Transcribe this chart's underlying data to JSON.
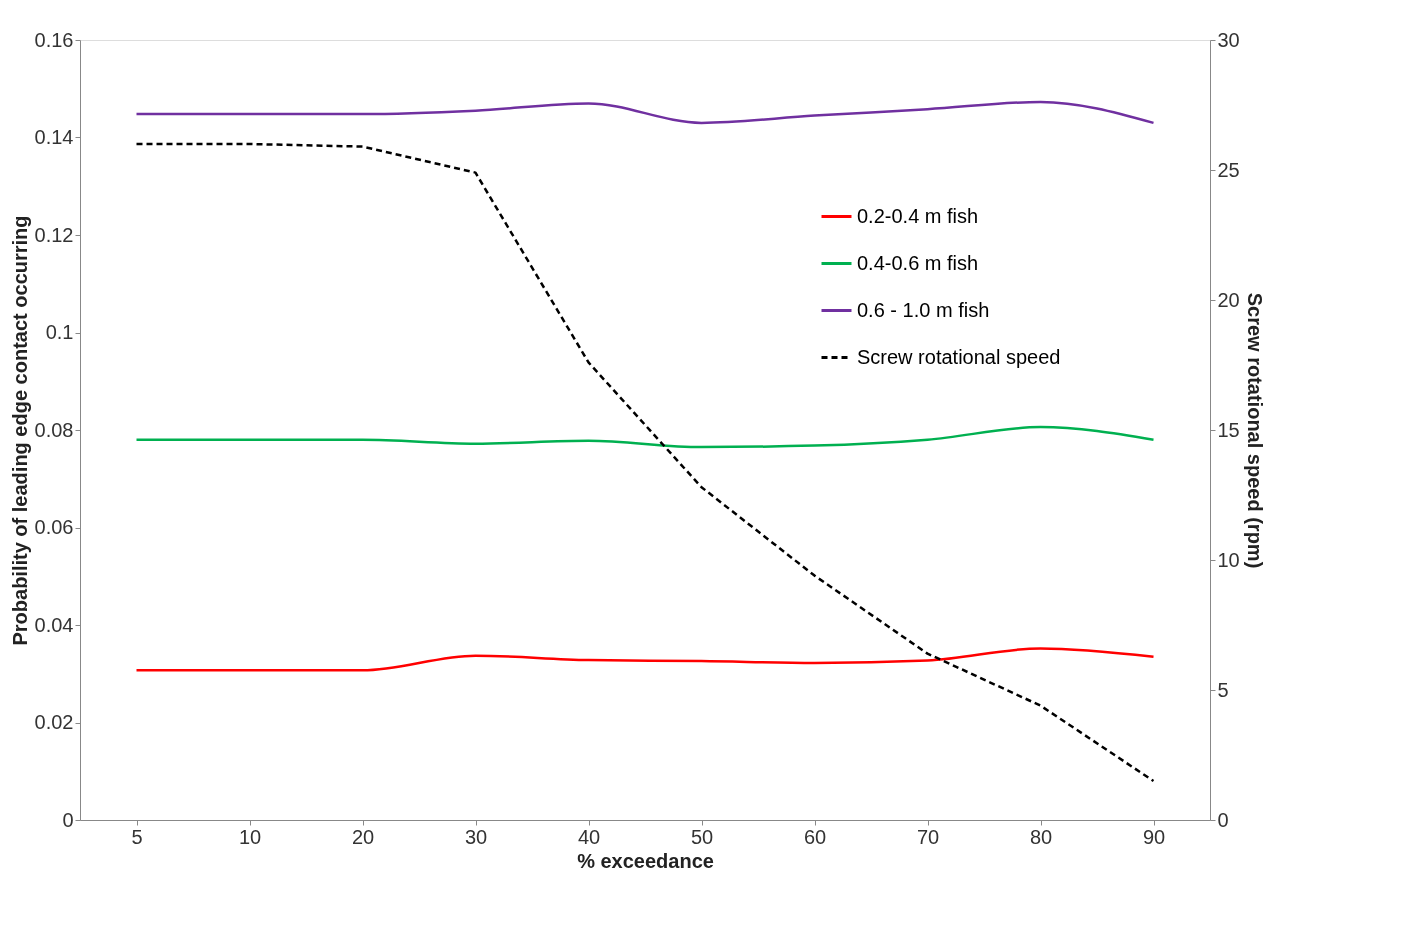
{
  "chart_data": {
    "type": "line",
    "xlabel": "% exceedance",
    "ylabel": "Probability of leading edge contact occurring",
    "y2label": "Screw rotational speed (rpm)",
    "categories": [
      "5",
      "10",
      "20",
      "30",
      "40",
      "50",
      "60",
      "70",
      "80",
      "90"
    ],
    "series": [
      {
        "name": "0.2-0.4 m fish",
        "color": "#ff0000",
        "line_style": "solid",
        "values": [
          0.0307,
          0.0307,
          0.0307,
          0.0337,
          0.0328,
          0.0326,
          0.0322,
          0.0327,
          0.0352,
          0.0335
        ]
      },
      {
        "name": "0.4-0.6 m fish",
        "color": "#00b050",
        "line_style": "solid",
        "values": [
          0.078,
          0.078,
          0.078,
          0.0772,
          0.0778,
          0.0765,
          0.0768,
          0.078,
          0.0806,
          0.078
        ]
      },
      {
        "name": "0.6 - 1.0 m fish",
        "color": "#7030a0",
        "line_style": "solid",
        "values": [
          0.1448,
          0.1448,
          0.1448,
          0.1455,
          0.147,
          0.143,
          0.1445,
          0.1458,
          0.1473,
          0.143
        ]
      },
      {
        "name": "Screw rotational speed",
        "color": "#000000",
        "line_style": "dashed",
        "axis": "y2",
        "values": [
          26.0,
          26.0,
          25.9,
          24.9,
          17.6,
          12.8,
          9.4,
          6.4,
          4.4,
          1.5
        ]
      }
    ],
    "ylim": [
      0,
      0.16
    ],
    "yticks": [
      0,
      0.02,
      0.04,
      0.06,
      0.08,
      0.1,
      0.12,
      0.14,
      0.16
    ],
    "y2lim": [
      0,
      30
    ],
    "y2ticks": [
      0,
      5,
      10,
      15,
      20,
      25,
      30
    ],
    "grid": false,
    "legend": "top right",
    "marker": "none"
  }
}
